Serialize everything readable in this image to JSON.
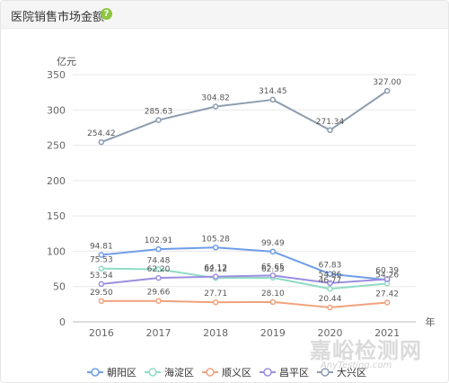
{
  "header": {
    "title": "医院销售市场金额",
    "help_icon": "question-circle-icon"
  },
  "watermark": {
    "cn": "嘉峪检测网",
    "en": "AnyTesting.com"
  },
  "chart_data": {
    "type": "line",
    "title": "",
    "y_unit": "亿元",
    "x_unit": "年",
    "categories": [
      "2016",
      "2017",
      "2018",
      "2019",
      "2020",
      "2021"
    ],
    "ylim": [
      0,
      350
    ],
    "yticks": [
      0,
      50,
      100,
      150,
      200,
      250,
      300,
      350
    ],
    "grid": true,
    "legend_position": "bottom",
    "series": [
      {
        "name": "朝阳区",
        "color": "#6f9de8",
        "values": [
          94.81,
          102.91,
          105.28,
          99.49,
          67.83,
          59.53
        ],
        "labels": [
          "94.81",
          "102.91",
          "105.28",
          "99.49",
          "67.83",
          ""
        ]
      },
      {
        "name": "海淀区",
        "color": "#8fdcc6",
        "values": [
          75.53,
          74.48,
          62.12,
          62.55,
          46.77,
          54.26
        ],
        "labels": [
          "75.53",
          "74.48",
          "62.12",
          "62.55",
          "46.77",
          "54.26"
        ]
      },
      {
        "name": "顺义区",
        "color": "#f0a27c",
        "values": [
          29.5,
          29.66,
          27.71,
          28.1,
          20.44,
          27.42
        ],
        "labels": [
          "29.50",
          "29.66",
          "27.71",
          "28.10",
          "20.44",
          "27.42"
        ]
      },
      {
        "name": "昌平区",
        "color": "#9b8fe0",
        "values": [
          53.54,
          62.2,
          64.12,
          65.65,
          54.86,
          60.39
        ],
        "labels": [
          "53.54",
          "62.20",
          "64.12",
          "65.65",
          "54.86",
          "60.39"
        ]
      },
      {
        "name": "大兴区",
        "color": "#8c9db0",
        "values": [
          254.42,
          285.63,
          304.82,
          314.45,
          271.34,
          327.0
        ],
        "labels": [
          "254.42",
          "285.63",
          "304.82",
          "314.45",
          "271.34",
          "327.00"
        ]
      }
    ]
  }
}
